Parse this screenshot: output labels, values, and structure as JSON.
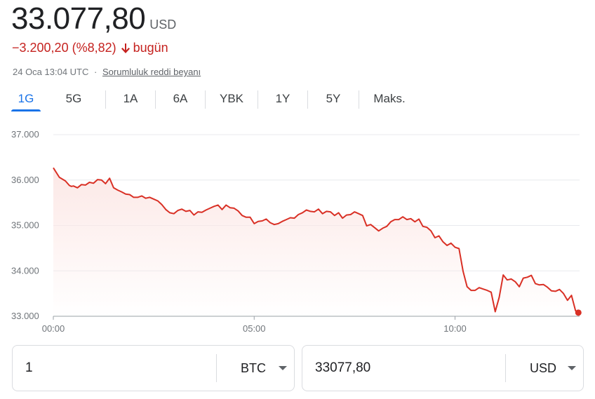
{
  "header": {
    "price": "33.077,80",
    "currency": "USD",
    "change": "−3.200,20 (%8,82)",
    "change_period": "bugün",
    "timestamp": "24 Oca 13:04 UTC",
    "separator": "·",
    "disclaimer": "Sorumluluk reddi beyanı"
  },
  "tabs": [
    {
      "label": "1G",
      "active": true
    },
    {
      "label": "5G",
      "active": false
    },
    {
      "label": "1A",
      "active": false
    },
    {
      "label": "6A",
      "active": false
    },
    {
      "label": "YBK",
      "active": false
    },
    {
      "label": "1Y",
      "active": false
    },
    {
      "label": "5Y",
      "active": false
    },
    {
      "label": "Maks.",
      "active": false
    }
  ],
  "colors": {
    "line": "#d93025",
    "fill": "#fce8e6",
    "negative": "#c5221f",
    "accent": "#1a73e8",
    "grid": "#e8eaed",
    "tick_text": "#70757a"
  },
  "chart_data": {
    "type": "area",
    "x_unit": "hours since 00:00",
    "y_ticks": [
      33000,
      34000,
      35000,
      36000,
      37000
    ],
    "y_tick_labels": [
      "33.000",
      "34.000",
      "35.000",
      "36.000",
      "37.000"
    ],
    "x_ticks": [
      0,
      5,
      10
    ],
    "x_tick_labels": [
      "00:00",
      "05:00",
      "10:00"
    ],
    "xlim": [
      0,
      13.1
    ],
    "ylim": [
      33000,
      37000
    ],
    "grid": true,
    "baseline_value": 33000,
    "series": [
      {
        "x": [
          0.0,
          0.15,
          0.3,
          0.4,
          0.45,
          0.5,
          0.6,
          0.7,
          0.8,
          0.9,
          1.0,
          1.1,
          1.2,
          1.3,
          1.4,
          1.5,
          1.6,
          1.7,
          1.8,
          1.9,
          2.0,
          2.1,
          2.2,
          2.3,
          2.4,
          2.5,
          2.6,
          2.7,
          2.8,
          2.9,
          3.0,
          3.1,
          3.2,
          3.3,
          3.4,
          3.5,
          3.6,
          3.7,
          3.8,
          3.9,
          4.0,
          4.1,
          4.2,
          4.3,
          4.4,
          4.5,
          4.6,
          4.7,
          4.8,
          4.9,
          5.0,
          5.1,
          5.2,
          5.3,
          5.4,
          5.5,
          5.6,
          5.7,
          5.8,
          5.9,
          6.0,
          6.1,
          6.2,
          6.3,
          6.4,
          6.5,
          6.6,
          6.7,
          6.8,
          6.9,
          7.0,
          7.1,
          7.2,
          7.3,
          7.4,
          7.5,
          7.6,
          7.7,
          7.8,
          7.9,
          8.0,
          8.1,
          8.2,
          8.3,
          8.4,
          8.5,
          8.6,
          8.7,
          8.8,
          8.9,
          9.0,
          9.1,
          9.2,
          9.3,
          9.4,
          9.5,
          9.6,
          9.7,
          9.8,
          9.9,
          10.0,
          10.1,
          10.2,
          10.3,
          10.4,
          10.5,
          10.6,
          10.7,
          10.8,
          10.9,
          11.0,
          11.1,
          11.2,
          11.3,
          11.4,
          11.5,
          11.6,
          11.7,
          11.8,
          11.9,
          12.0,
          12.1,
          12.2,
          12.3,
          12.4,
          12.5,
          12.6,
          12.7,
          12.8,
          12.9,
          13.0,
          13.07
        ],
        "y": [
          36270,
          36060,
          35980,
          35880,
          35860,
          35870,
          35830,
          35900,
          35890,
          35950,
          35930,
          36010,
          36000,
          35920,
          36040,
          35830,
          35780,
          35740,
          35690,
          35680,
          35620,
          35620,
          35650,
          35600,
          35620,
          35580,
          35540,
          35460,
          35350,
          35280,
          35260,
          35330,
          35360,
          35310,
          35330,
          35230,
          35300,
          35290,
          35340,
          35380,
          35420,
          35450,
          35350,
          35450,
          35390,
          35380,
          35320,
          35220,
          35180,
          35180,
          35040,
          35090,
          35100,
          35140,
          35060,
          35020,
          35040,
          35090,
          35130,
          35170,
          35160,
          35240,
          35280,
          35340,
          35310,
          35300,
          35360,
          35260,
          35310,
          35300,
          35220,
          35280,
          35160,
          35230,
          35240,
          35300,
          35260,
          35220,
          34990,
          35020,
          34950,
          34880,
          34940,
          34980,
          35080,
          35130,
          35130,
          35190,
          35130,
          35150,
          35080,
          35140,
          34980,
          34960,
          34880,
          34730,
          34770,
          34640,
          34560,
          34610,
          34520,
          34490,
          33990,
          33650,
          33570,
          33570,
          33630,
          33600,
          33570,
          33530,
          33100,
          33420,
          33910,
          33800,
          33820,
          33760,
          33650,
          33840,
          33860,
          33900,
          33720,
          33690,
          33700,
          33640,
          33560,
          33550,
          33590,
          33500,
          33350,
          33460,
          33120,
          33080
        ]
      }
    ]
  },
  "converter": {
    "left": {
      "value": "1",
      "unit": "BTC"
    },
    "right": {
      "value": "33077,80",
      "unit": "USD"
    }
  }
}
